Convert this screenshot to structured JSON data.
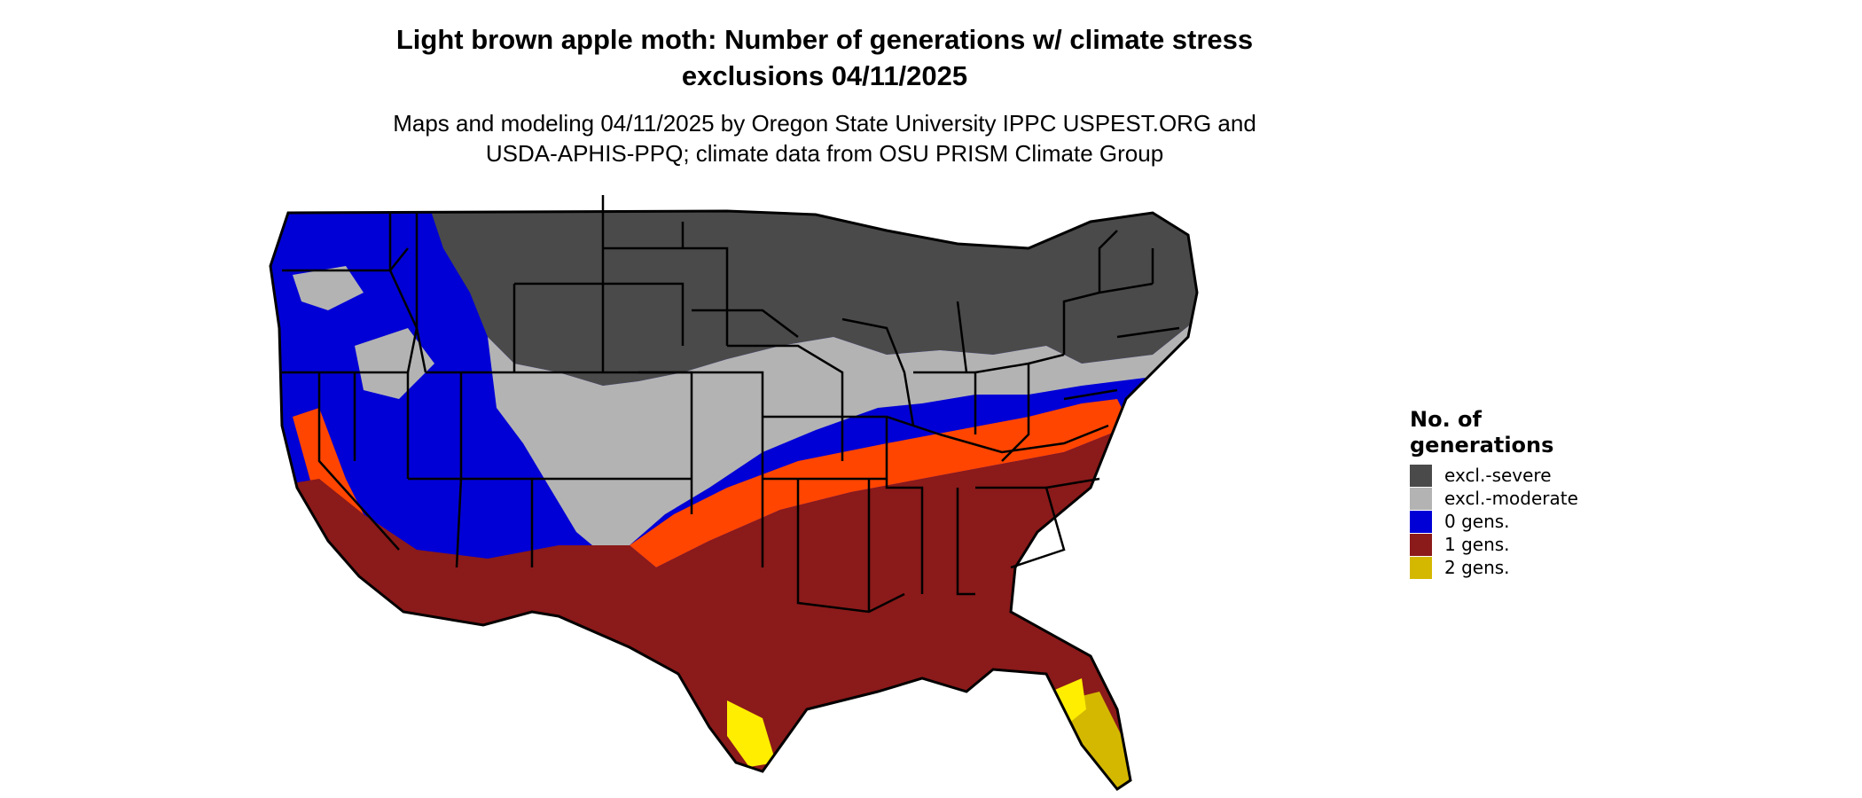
{
  "map": {
    "title_line1": "Light brown apple moth: Number of generations w/ climate stress",
    "title_line2": "exclusions 04/11/2025",
    "subtitle_line1": "Maps and modeling 04/11/2025 by Oregon State University IPPC USPEST.ORG and",
    "subtitle_line2": "USDA-APHIS-PPQ; climate data from OSU PRISM Climate Group"
  },
  "legend": {
    "title_line1": "No. of",
    "title_line2": "generations",
    "items": [
      {
        "label": "excl.-severe",
        "color": "#4a4a4a"
      },
      {
        "label": "excl.-moderate",
        "color": "#b3b3b3"
      },
      {
        "label": "0 gens.",
        "color": "#0000d6"
      },
      {
        "label": "1 gens.",
        "color": "#8b1a1a"
      },
      {
        "label": "2 gens.",
        "color": "#d4b800"
      }
    ]
  },
  "colors": {
    "excl_severe": "#4a4a4a",
    "excl_moderate": "#b3b3b3",
    "zero_gens": "#0000d6",
    "one_gens": "#8b1a1a",
    "one_gens_light": "#ff4500",
    "two_gens": "#d4b800",
    "two_gens_light": "#ffee00",
    "border": "#000000"
  }
}
